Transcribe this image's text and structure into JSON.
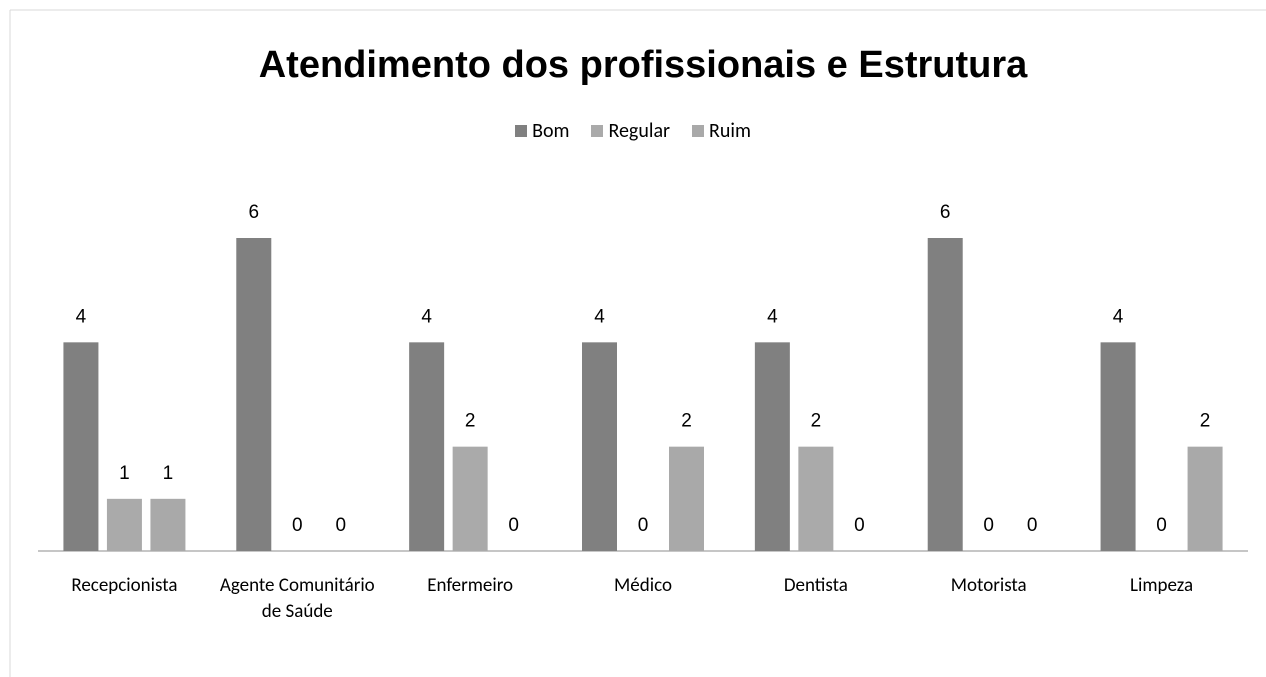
{
  "chart_data": {
    "type": "bar",
    "title": "Atendimento dos profissionais e Estrutura",
    "categories": [
      "Recepcionista",
      "Agente Comunitário de Saúde",
      "Enfermeiro",
      "Médico",
      "Dentista",
      "Motorista",
      "Limpeza"
    ],
    "series": [
      {
        "name": "Bom",
        "color": "#808080",
        "values": [
          4,
          6,
          4,
          4,
          4,
          6,
          4
        ]
      },
      {
        "name": "Regular",
        "color": "#aaaaaa",
        "values": [
          1,
          0,
          2,
          0,
          2,
          0,
          0
        ]
      },
      {
        "name": "Ruim",
        "color": "#a9a9a9",
        "values": [
          1,
          0,
          0,
          2,
          0,
          0,
          2
        ]
      }
    ],
    "legend": "top",
    "grid": false
  }
}
